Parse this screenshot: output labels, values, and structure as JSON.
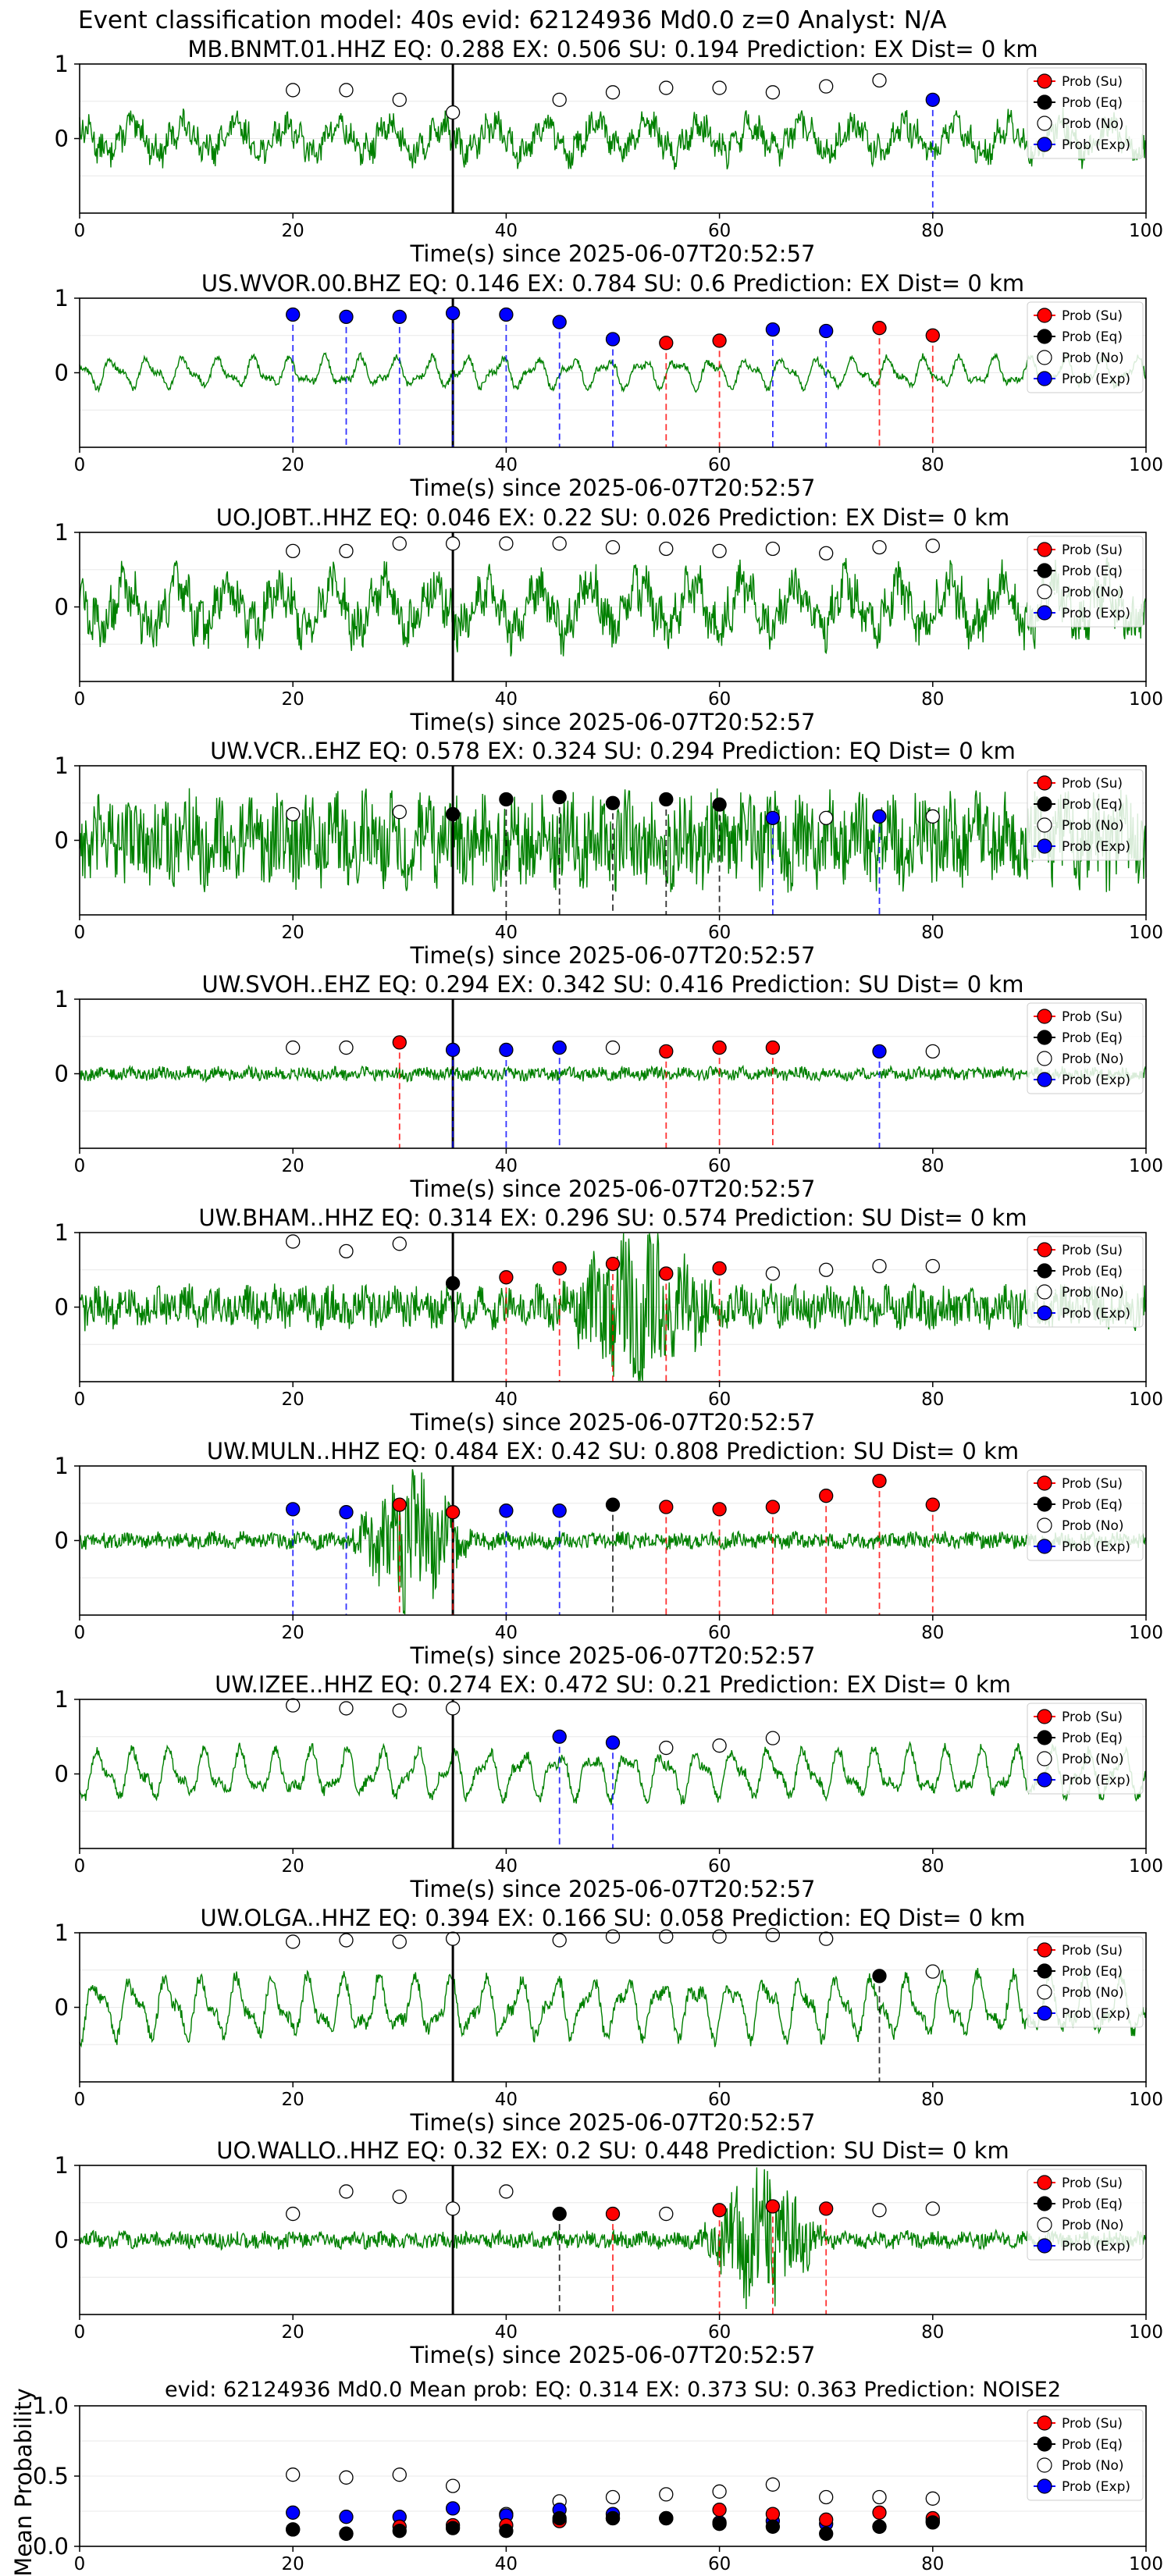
{
  "suptitle": "Event classification model: 40s evid: 62124936 Md0.0 z=0 Analyst: N/A",
  "xlabel": "Time(s) since 2025-06-07T20:52:57",
  "legend": [
    "Prob (Su)",
    "Prob (Eq)",
    "Prob (No)",
    "Prob (Exp)"
  ],
  "colors": {
    "su": "#ff0000",
    "eq": "#000000",
    "no": "#ffffff",
    "exp": "#0000ff",
    "wave": "#008000"
  },
  "marker_times": [
    20,
    25,
    30,
    35,
    40,
    45,
    50,
    55,
    60,
    65,
    70,
    75,
    80
  ],
  "chart_data": [
    {
      "type": "line",
      "title": "MB.BNMT.01.HHZ   EQ: 0.288  EX: 0.506  SU: 0.194   Prediction: EX    Dist= 0 km",
      "xlim": [
        0,
        100
      ],
      "ylim": [
        -1,
        1
      ],
      "xticks": [
        0,
        20,
        40,
        60,
        80,
        100
      ],
      "yticks": [
        1,
        0
      ],
      "onset": 35,
      "noise": "low",
      "amp": 0.35,
      "points": [
        "N0.65",
        "N0.65",
        "N0.52",
        "N0.35",
        "",
        "N0.52",
        "N0.62",
        "N0.68",
        "N0.68",
        "N0.62",
        "N0.70",
        "N0.78",
        "X0.52"
      ]
    },
    {
      "type": "line",
      "title": "US.WVOR.00.BHZ   EQ: 0.146  EX: 0.784  SU: 0.6   Prediction: EX    Dist= 0 km",
      "xlim": [
        0,
        100
      ],
      "ylim": [
        -1,
        1
      ],
      "xticks": [
        0,
        20,
        40,
        60,
        80,
        100
      ],
      "yticks": [
        1,
        0
      ],
      "onset": 35,
      "noise": "smooth",
      "amp": 0.25,
      "points": [
        "X0.78",
        "X0.75",
        "X0.75",
        "X0.80",
        "X0.78",
        "X0.68",
        "X0.45",
        "S0.40",
        "S0.43",
        "X0.58",
        "X0.56",
        "S0.60",
        "S0.50"
      ]
    },
    {
      "type": "line",
      "title": "UO.JOBT..HHZ   EQ: 0.046  EX: 0.22  SU: 0.026   Prediction: EX    Dist= 0 km",
      "xlim": [
        0,
        100
      ],
      "ylim": [
        -1,
        1
      ],
      "xticks": [
        0,
        20,
        40,
        60,
        80,
        100
      ],
      "yticks": [
        1,
        0
      ],
      "onset": 35,
      "noise": "low",
      "amp": 0.55,
      "points": [
        "N0.75",
        "N0.75",
        "N0.85",
        "N0.85",
        "N0.85",
        "N0.85",
        "N0.80",
        "N0.78",
        "N0.75",
        "N0.78",
        "N0.72",
        "N0.80",
        "N0.82"
      ]
    },
    {
      "type": "line",
      "title": "UW.VCR..EHZ   EQ: 0.578  EX: 0.324  SU: 0.294   Prediction: EQ    Dist= 0 km",
      "xlim": [
        0,
        100
      ],
      "ylim": [
        -1,
        1
      ],
      "xticks": [
        0,
        20,
        40,
        60,
        80,
        100
      ],
      "yticks": [
        1,
        0
      ],
      "onset": 35,
      "noise": "high",
      "amp": 0.55,
      "points": [
        "N0.35",
        "",
        "N0.38",
        "E0.35",
        "E0.55",
        "E0.58",
        "E0.50",
        "E0.55",
        "E0.48",
        "X0.30",
        "N0.30",
        "X0.32",
        "N0.32"
      ]
    },
    {
      "type": "line",
      "title": "UW.SVOH..EHZ   EQ: 0.294  EX: 0.342  SU: 0.416   Prediction: SU    Dist= 0 km",
      "xlim": [
        0,
        100
      ],
      "ylim": [
        -1,
        1
      ],
      "xticks": [
        0,
        20,
        40,
        60,
        80,
        100
      ],
      "yticks": [
        1,
        0
      ],
      "onset": 35,
      "noise": "high",
      "amp": 0.08,
      "points": [
        "N0.35",
        "N0.35",
        "S0.42",
        "X0.32",
        "X0.32",
        "X0.35",
        "N0.35",
        "S0.30",
        "S0.35",
        "S0.35",
        "",
        "X0.30",
        "N0.30"
      ]
    },
    {
      "type": "line",
      "title": "UW.BHAM..HHZ   EQ: 0.314  EX: 0.296  SU: 0.574   Prediction: SU    Dist= 0 km",
      "xlim": [
        0,
        100
      ],
      "ylim": [
        -1,
        1
      ],
      "xticks": [
        0,
        20,
        40,
        60,
        80,
        100
      ],
      "yticks": [
        1,
        0
      ],
      "onset": 35,
      "noise": "high",
      "amp": 0.25,
      "burst": [
        45,
        60
      ],
      "points": [
        "N0.88",
        "N0.75",
        "N0.85",
        "E0.32",
        "S0.40",
        "S0.52",
        "S0.58",
        "S0.45",
        "S0.52",
        "N0.45",
        "N0.50",
        "N0.55",
        "N0.55"
      ]
    },
    {
      "type": "line",
      "title": "UW.MULN..HHZ   EQ: 0.484  EX: 0.42  SU: 0.808   Prediction: SU    Dist= 0 km",
      "xlim": [
        0,
        100
      ],
      "ylim": [
        -1,
        1
      ],
      "xticks": [
        0,
        20,
        40,
        60,
        80,
        100
      ],
      "yticks": [
        1,
        0
      ],
      "onset": 35,
      "noise": "high",
      "amp": 0.1,
      "burst": [
        25,
        37
      ],
      "points": [
        "X0.42",
        "X0.38",
        "S0.48",
        "S0.38",
        "X0.40",
        "X0.40",
        "E0.48",
        "S0.45",
        "S0.42",
        "S0.45",
        "S0.60",
        "S0.80",
        "S0.48"
      ]
    },
    {
      "type": "line",
      "title": "UW.IZEE..HHZ   EQ: 0.274  EX: 0.472  SU: 0.21   Prediction: EX    Dist= 0 km",
      "xlim": [
        0,
        100
      ],
      "ylim": [
        -1,
        1
      ],
      "xticks": [
        0,
        20,
        40,
        60,
        80,
        100
      ],
      "yticks": [
        1,
        0
      ],
      "onset": 35,
      "noise": "smooth",
      "amp": 0.4,
      "points": [
        "N0.92",
        "N0.88",
        "N0.85",
        "N0.88",
        "",
        "X0.50",
        "X0.42",
        "N0.35",
        "N0.38",
        "N0.48",
        "",
        "",
        ""
      ]
    },
    {
      "type": "line",
      "title": "UW.OLGA..HHZ   EQ: 0.394  EX: 0.166  SU: 0.058   Prediction: EQ    Dist= 0 km",
      "xlim": [
        0,
        100
      ],
      "ylim": [
        -1,
        1
      ],
      "xticks": [
        0,
        20,
        40,
        60,
        80,
        100
      ],
      "yticks": [
        1,
        0
      ],
      "onset": 35,
      "noise": "smooth",
      "amp": 0.5,
      "points": [
        "N0.88",
        "N0.90",
        "N0.88",
        "N0.92",
        "",
        "N0.90",
        "N0.95",
        "N0.95",
        "N0.95",
        "N0.97",
        "N0.92",
        "E0.42",
        "N0.48"
      ]
    },
    {
      "type": "line",
      "title": "UO.WALLO..HHZ   EQ: 0.32  EX: 0.2  SU: 0.448   Prediction: SU    Dist= 0 km",
      "xlim": [
        0,
        100
      ],
      "ylim": [
        -1,
        1
      ],
      "xticks": [
        0,
        20,
        40,
        60,
        80,
        100
      ],
      "yticks": [
        1,
        0
      ],
      "onset": 35,
      "noise": "high",
      "amp": 0.1,
      "burst": [
        58,
        70
      ],
      "points": [
        "N0.35",
        "N0.65",
        "N0.58",
        "N0.42",
        "N0.65",
        "E0.35",
        "S0.35",
        "N0.35",
        "S0.40",
        "S0.45",
        "S0.42",
        "N0.40",
        "N0.42"
      ]
    },
    {
      "type": "scatter",
      "title": "evid: 62124936   Md0.0    Mean prob:   EQ: 0.314   EX: 0.373   SU: 0.363   Prediction: NOISE2",
      "ylabel": "Mean Probability",
      "xlim": [
        0,
        100
      ],
      "ylim": [
        0,
        1
      ],
      "xticks": [
        0,
        20,
        40,
        60,
        80,
        100
      ],
      "yticks": [
        1.0,
        0.5,
        0.0
      ],
      "x": [
        20,
        25,
        30,
        35,
        40,
        45,
        50,
        55,
        60,
        65,
        70,
        75,
        80
      ],
      "series": [
        {
          "name": "Prob (No)",
          "values": [
            0.51,
            0.49,
            0.51,
            0.43,
            0.23,
            0.32,
            0.35,
            0.37,
            0.39,
            0.44,
            0.35,
            0.35,
            0.34
          ]
        },
        {
          "name": "Prob (Exp)",
          "values": [
            0.24,
            0.21,
            0.21,
            0.27,
            0.22,
            0.26,
            0.23,
            0.2,
            0.17,
            0.18,
            0.16,
            0.14,
            0.18
          ]
        },
        {
          "name": "Prob (Su)",
          "values": [
            0.12,
            0.09,
            0.14,
            0.15,
            0.15,
            0.18,
            0.2,
            0.2,
            0.26,
            0.23,
            0.19,
            0.24,
            0.2
          ]
        },
        {
          "name": "Prob (Eq)",
          "values": [
            0.12,
            0.09,
            0.11,
            0.13,
            0.11,
            0.2,
            0.2,
            0.2,
            0.16,
            0.14,
            0.09,
            0.14,
            0.17
          ]
        }
      ]
    }
  ]
}
